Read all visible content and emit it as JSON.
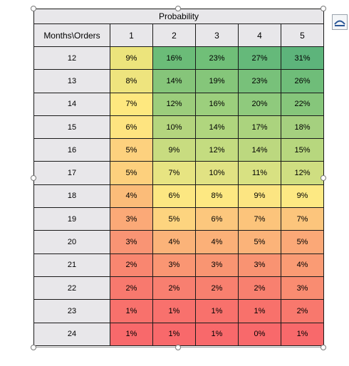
{
  "table": {
    "title": "Probability",
    "corner_header": "Months\\Orders",
    "column_headers": [
      "1",
      "2",
      "3",
      "4",
      "5"
    ],
    "rows": [
      {
        "month": "12",
        "values": [
          "9%",
          "16%",
          "23%",
          "27%",
          "31%"
        ],
        "colors": [
          "#ece47c",
          "#6bbc78",
          "#70bf78",
          "#65b97a",
          "#5db47b"
        ]
      },
      {
        "month": "13",
        "values": [
          "8%",
          "14%",
          "19%",
          "23%",
          "26%"
        ],
        "colors": [
          "#eee47e",
          "#86c57a",
          "#85c67a",
          "#78c17a",
          "#6fbd79"
        ]
      },
      {
        "month": "14",
        "values": [
          "7%",
          "12%",
          "16%",
          "20%",
          "22%"
        ],
        "colors": [
          "#fee87f",
          "#9ccd7c",
          "#9ccf7d",
          "#8fca7d",
          "#86c67b"
        ]
      },
      {
        "month": "15",
        "values": [
          "6%",
          "10%",
          "14%",
          "17%",
          "18%"
        ],
        "colors": [
          "#fee480",
          "#b4d57e",
          "#b0d67e",
          "#abd37e",
          "#a5d07f"
        ]
      },
      {
        "month": "16",
        "values": [
          "5%",
          "9%",
          "12%",
          "14%",
          "15%"
        ],
        "colors": [
          "#fdd17e",
          "#c8dc80",
          "#c4dc80",
          "#bcd87f",
          "#b7d77e"
        ]
      },
      {
        "month": "17",
        "values": [
          "5%",
          "7%",
          "10%",
          "11%",
          "12%"
        ],
        "colors": [
          "#fdd07d",
          "#e7e482",
          "#e1e283",
          "#d8e182",
          "#cfde81"
        ]
      },
      {
        "month": "18",
        "values": [
          "4%",
          "6%",
          "8%",
          "9%",
          "9%"
        ],
        "colors": [
          "#fbbc79",
          "#fce782",
          "#fde882",
          "#fce582",
          "#fde983"
        ]
      },
      {
        "month": "19",
        "values": [
          "3%",
          "5%",
          "6%",
          "7%",
          "7%"
        ],
        "colors": [
          "#fba977",
          "#fdd47f",
          "#fcc77d",
          "#fcc47b",
          "#fcc57c"
        ]
      },
      {
        "month": "20",
        "values": [
          "3%",
          "4%",
          "4%",
          "5%",
          "5%"
        ],
        "colors": [
          "#f99474",
          "#fbb379",
          "#fbb078",
          "#fbb379",
          "#fba877"
        ]
      },
      {
        "month": "21",
        "values": [
          "2%",
          "3%",
          "3%",
          "3%",
          "4%"
        ],
        "colors": [
          "#f98670",
          "#fa9673",
          "#f99572",
          "#f99372",
          "#fa9b74"
        ]
      },
      {
        "month": "22",
        "values": [
          "2%",
          "2%",
          "2%",
          "2%",
          "3%"
        ],
        "colors": [
          "#f8796e",
          "#f87f70",
          "#f8806f",
          "#f8806f",
          "#f98c71"
        ]
      },
      {
        "month": "23",
        "values": [
          "1%",
          "1%",
          "1%",
          "1%",
          "2%"
        ],
        "colors": [
          "#f8716c",
          "#f8716d",
          "#f8716c",
          "#f8716b",
          "#f8786d"
        ]
      },
      {
        "month": "24",
        "values": [
          "1%",
          "1%",
          "1%",
          "0%",
          "1%"
        ],
        "colors": [
          "#f8696b",
          "#f8696b",
          "#f8696b",
          "#f8696b",
          "#f8696b"
        ]
      }
    ]
  },
  "colors": {
    "header_bg": "#e8e7ea",
    "border": "#1a1a1a",
    "selection_frame": "#9a9a9a"
  },
  "icons": {
    "layout_options": "layout-options-icon"
  }
}
